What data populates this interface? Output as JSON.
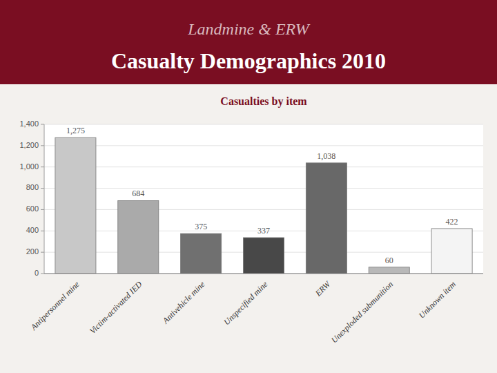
{
  "chart_data": {
    "type": "bar",
    "title": [
      "Landmine & ERW",
      "Casualty Demographics 2010"
    ],
    "subtitle": "Casualties by item",
    "categories": [
      "Antipersonnel mine",
      "Victim-activated IED",
      "Antivehicle mine",
      "Unspecified mine",
      "ERW",
      "Unexploded submunition",
      "Unknown item"
    ],
    "values": [
      1275,
      684,
      375,
      337,
      1038,
      60,
      422
    ],
    "value_labels": [
      "1,275",
      "684",
      "375",
      "337",
      "1,038",
      "60",
      "422"
    ],
    "colors": [
      "#c8c8c8",
      "#aaaaaa",
      "#707070",
      "#484848",
      "#686868",
      "#b8b8b8",
      "#f4f4f4"
    ],
    "ylim": [
      0,
      1400
    ],
    "yticks": [
      0,
      200,
      400,
      600,
      800,
      {
        "value": 1000,
        "label": "1,000"
      },
      {
        "value": 1200,
        "label": "1,200"
      },
      {
        "value": 1400,
        "label": "1,400"
      }
    ],
    "grid": true,
    "data_labels": true
  }
}
